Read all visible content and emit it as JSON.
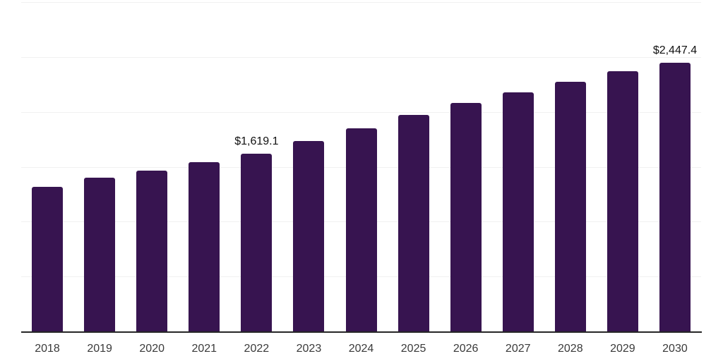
{
  "chart_data": {
    "type": "bar",
    "title": "",
    "xlabel": "",
    "ylabel": "",
    "categories": [
      "2018",
      "2019",
      "2020",
      "2021",
      "2022",
      "2023",
      "2024",
      "2025",
      "2026",
      "2027",
      "2028",
      "2029",
      "2030"
    ],
    "values": [
      1317,
      1400,
      1465,
      1539,
      1619.1,
      1735,
      1850,
      1972,
      2081,
      2178,
      2274,
      2371,
      2447.4
    ],
    "value_labels": [
      {
        "category": "2022",
        "text": "$1,619.1"
      },
      {
        "category": "2030",
        "text": "$2,447.4"
      }
    ],
    "ylim": [
      0,
      3000
    ],
    "gridline_step": 500,
    "grid": true,
    "y_axis_labels_visible": false,
    "legend": "none",
    "colors": {
      "bar": "#371450",
      "value_label": "#111111",
      "axis_tick_label": "#3a3a3a",
      "gridline": "#f1f1f1",
      "axis_line": "#262626",
      "background": "#ffffff"
    }
  }
}
